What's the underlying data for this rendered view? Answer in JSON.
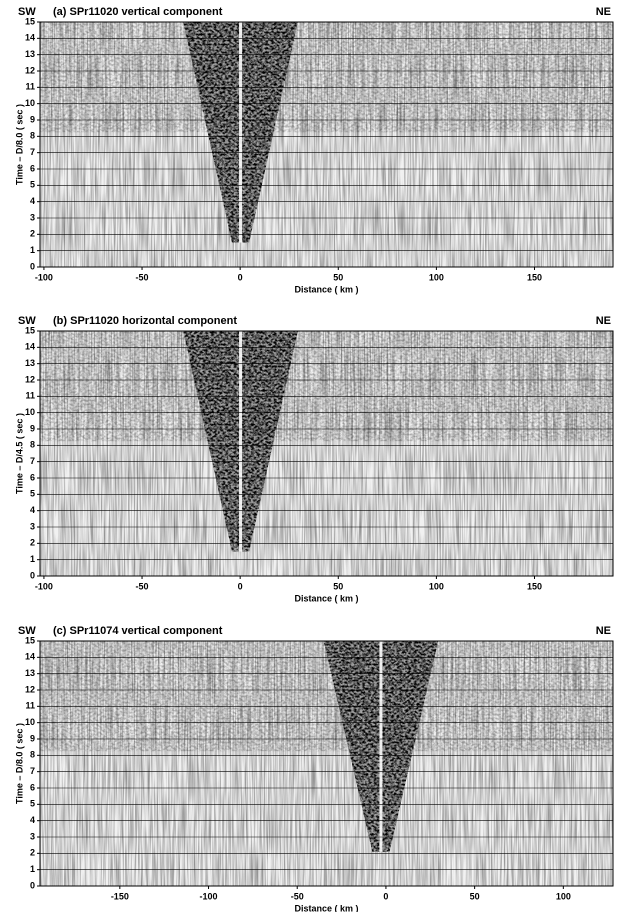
{
  "chart_data": [
    {
      "type": "image",
      "title": "(a) SPr11020 vertical component",
      "left_label": "SW",
      "right_label": "NE",
      "x_label": "Distance ( km )",
      "y_label": "Time – D/8.0 ( sec )",
      "xlim": [
        -102,
        190
      ],
      "xticks": [
        -100,
        -50,
        0,
        50,
        100,
        150
      ],
      "ylim": [
        0,
        15
      ],
      "yticks": [
        0,
        1,
        2,
        3,
        4,
        5,
        6,
        7,
        8,
        9,
        10,
        11,
        12,
        13,
        14,
        15
      ],
      "grid": true
    },
    {
      "type": "image",
      "title": "(b) SPr11020 horizontal component",
      "left_label": "SW",
      "right_label": "NE",
      "x_label": "Distance ( km )",
      "y_label": "Time – D/4.5 ( sec )",
      "xlim": [
        -102,
        190
      ],
      "xticks": [
        -100,
        -50,
        0,
        50,
        100,
        150
      ],
      "ylim": [
        0,
        15
      ],
      "yticks": [
        0,
        1,
        2,
        3,
        4,
        5,
        6,
        7,
        8,
        9,
        10,
        11,
        12,
        13,
        14,
        15
      ],
      "grid": true
    },
    {
      "type": "image",
      "title": "(c) SPr11074 vertical component",
      "left_label": "SW",
      "right_label": "NE",
      "x_label": "Distance ( km )",
      "y_label": "Time – D/8.0 ( sec )",
      "xlim": [
        -195,
        128
      ],
      "xticks": [
        -150,
        -100,
        -50,
        0,
        50,
        100
      ],
      "ylim": [
        0,
        15
      ],
      "yticks": [
        0,
        1,
        2,
        3,
        4,
        5,
        6,
        7,
        8,
        9,
        10,
        11,
        12,
        13,
        14,
        15
      ],
      "grid": true
    }
  ]
}
